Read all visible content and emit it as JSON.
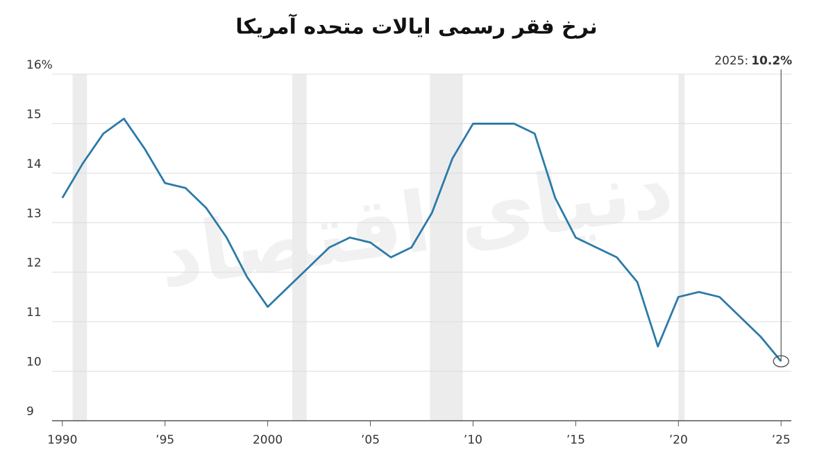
{
  "chart_data": {
    "type": "line",
    "title": "نرخ فقر رسمی ایالات متحده آمریکا",
    "watermark": "دنیای اقتصاد",
    "x": [
      1990,
      1991,
      1992,
      1993,
      1994,
      1995,
      1996,
      1997,
      1998,
      1999,
      2000,
      2001,
      2002,
      2003,
      2004,
      2005,
      2006,
      2007,
      2008,
      2009,
      2010,
      2011,
      2012,
      2013,
      2014,
      2015,
      2016,
      2017,
      2018,
      2019,
      2020,
      2021,
      2022,
      2023,
      2024,
      2025
    ],
    "series": [
      {
        "color": "#2b7aa8",
        "values": [
          13.5,
          14.2,
          14.8,
          15.1,
          14.5,
          13.8,
          13.7,
          13.3,
          12.7,
          11.9,
          11.3,
          11.7,
          12.1,
          12.5,
          12.7,
          12.6,
          12.3,
          12.5,
          13.2,
          14.3,
          15.0,
          15.0,
          15.0,
          14.8,
          13.5,
          12.7,
          12.5,
          12.3,
          11.8,
          10.5,
          11.5,
          11.6,
          11.5,
          11.1,
          10.7,
          10.2
        ]
      }
    ],
    "shaded_ranges": [
      [
        1990.5,
        1991.2
      ],
      [
        2001.2,
        2001.9
      ],
      [
        2007.9,
        2009.5
      ],
      [
        2020.0,
        2020.3
      ]
    ],
    "annotation": {
      "x": 2025,
      "label": "2025:",
      "value_label": "10.2%"
    },
    "xlim": [
      1989.5,
      2025.5
    ],
    "xticks": [
      1990,
      {
        "value": 1995,
        "label": "’95"
      },
      2000,
      {
        "value": 2005,
        "label": "’05"
      },
      {
        "value": 2010,
        "label": "’10"
      },
      {
        "value": 2015,
        "label": "’15"
      },
      {
        "value": 2020,
        "label": "’20"
      },
      {
        "value": 2025,
        "label": "’25"
      }
    ],
    "ylim": [
      9,
      16
    ],
    "yticks": [
      9,
      10,
      11,
      12,
      13,
      14,
      15,
      {
        "value": 16,
        "label": "16%"
      }
    ],
    "grid": true
  }
}
